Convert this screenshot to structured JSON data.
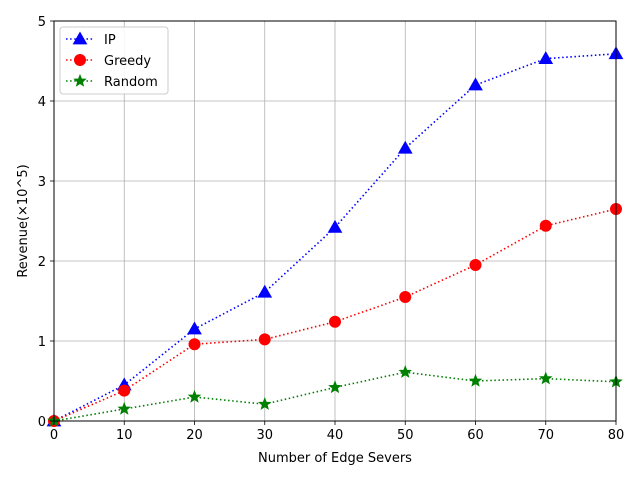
{
  "chart_data": {
    "type": "line",
    "xlabel": "Number of Edge Severs",
    "ylabel": "Revenue(×10^5)",
    "x": [
      0,
      10,
      20,
      30,
      40,
      50,
      60,
      70,
      80
    ],
    "xlim": [
      0,
      80
    ],
    "ylim": [
      0,
      5
    ],
    "xticks": [
      0,
      10,
      20,
      30,
      40,
      50,
      60,
      70,
      80
    ],
    "yticks": [
      0,
      1,
      2,
      3,
      4,
      5
    ],
    "grid": true,
    "legend_position": "top-left",
    "series": [
      {
        "name": " IP",
        "color": "#0000ff",
        "marker": "triangle",
        "linestyle": "dotted",
        "values": [
          0.0,
          0.45,
          1.15,
          1.61,
          2.42,
          3.41,
          4.2,
          4.53,
          4.59
        ]
      },
      {
        "name": "Greedy",
        "color": "#ff0000",
        "marker": "circle",
        "linestyle": "dotted",
        "values": [
          0.0,
          0.38,
          0.96,
          1.02,
          1.24,
          1.55,
          1.95,
          2.44,
          2.65
        ]
      },
      {
        "name": "Random",
        "color": "#008000",
        "marker": "star",
        "linestyle": "dotted",
        "values": [
          0.0,
          0.15,
          0.3,
          0.21,
          0.42,
          0.61,
          0.5,
          0.53,
          0.49
        ]
      }
    ]
  }
}
